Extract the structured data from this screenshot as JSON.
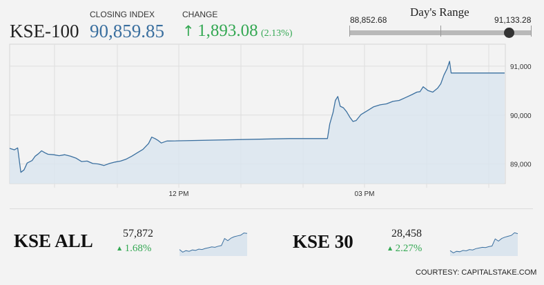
{
  "header": {
    "index_name": "KSE-100",
    "closing_label": "CLOSING INDEX",
    "closing_value": "90,859.85",
    "change_label": "CHANGE",
    "change_arrow": "↑",
    "change_value": "1,893.08",
    "change_pct": "(2.13%)",
    "range_title": "Day's Range",
    "range_low": "88,852.68",
    "range_high": "91,133.28"
  },
  "colors": {
    "line": "#3a6f9f",
    "area": "#dbe5ee",
    "positive": "#34a853",
    "marker": "#333333"
  },
  "chart_data": {
    "type": "area",
    "title": "",
    "xlabel": "",
    "ylabel": "",
    "ylim": [
      88600,
      91450
    ],
    "y_ticks": [
      89000,
      90000,
      91000
    ],
    "y_tick_labels": [
      "89,000",
      "90,000",
      "91,000"
    ],
    "x_tick_labels": [
      "12 PM",
      "03 PM"
    ],
    "grid": true,
    "series": [
      {
        "values": [
          [
            0,
            89320
          ],
          [
            6,
            89290
          ],
          [
            10,
            89330
          ],
          [
            14,
            88830
          ],
          [
            18,
            88880
          ],
          [
            22,
            89020
          ],
          [
            28,
            89070
          ],
          [
            32,
            89160
          ],
          [
            36,
            89210
          ],
          [
            40,
            89270
          ],
          [
            44,
            89230
          ],
          [
            48,
            89200
          ],
          [
            55,
            89190
          ],
          [
            62,
            89170
          ],
          [
            69,
            89190
          ],
          [
            76,
            89160
          ],
          [
            83,
            89120
          ],
          [
            90,
            89050
          ],
          [
            97,
            89060
          ],
          [
            104,
            89010
          ],
          [
            111,
            89000
          ],
          [
            118,
            88970
          ],
          [
            125,
            89010
          ],
          [
            132,
            89040
          ],
          [
            139,
            89060
          ],
          [
            146,
            89100
          ],
          [
            153,
            89160
          ],
          [
            160,
            89230
          ],
          [
            167,
            89300
          ],
          [
            174,
            89420
          ],
          [
            178,
            89550
          ],
          [
            182,
            89520
          ],
          [
            186,
            89480
          ],
          [
            190,
            89430
          ],
          [
            197,
            89470
          ],
          [
            200,
            89470
          ],
          [
            350,
            89520
          ],
          [
            398,
            89520
          ],
          [
            401,
            89820
          ],
          [
            405,
            90050
          ],
          [
            408,
            90300
          ],
          [
            411,
            90380
          ],
          [
            414,
            90180
          ],
          [
            418,
            90150
          ],
          [
            422,
            90070
          ],
          [
            426,
            89960
          ],
          [
            430,
            89870
          ],
          [
            434,
            89890
          ],
          [
            440,
            90010
          ],
          [
            448,
            90090
          ],
          [
            456,
            90170
          ],
          [
            464,
            90210
          ],
          [
            472,
            90230
          ],
          [
            480,
            90280
          ],
          [
            488,
            90300
          ],
          [
            496,
            90360
          ],
          [
            504,
            90420
          ],
          [
            510,
            90470
          ],
          [
            514,
            90480
          ],
          [
            518,
            90580
          ],
          [
            524,
            90500
          ],
          [
            530,
            90470
          ],
          [
            536,
            90550
          ],
          [
            540,
            90640
          ],
          [
            544,
            90820
          ],
          [
            548,
            90950
          ],
          [
            551,
            91100
          ],
          [
            553,
            90860
          ],
          [
            620,
            90860
          ]
        ]
      }
    ]
  },
  "mini": [
    {
      "name": "KSE ALL",
      "value": "57,872",
      "arrow": "▲",
      "pct": "1.68%",
      "values": [
        0.2,
        0.08,
        0.15,
        0.12,
        0.18,
        0.16,
        0.22,
        0.2,
        0.25,
        0.28,
        0.32,
        0.3,
        0.35,
        0.38,
        0.7,
        0.6,
        0.72,
        0.78,
        0.82,
        0.85,
        0.95,
        0.93
      ]
    },
    {
      "name": "KSE 30",
      "value": "28,458",
      "arrow": "▲",
      "pct": "2.27%",
      "values": [
        0.15,
        0.05,
        0.12,
        0.1,
        0.16,
        0.14,
        0.2,
        0.18,
        0.24,
        0.27,
        0.3,
        0.29,
        0.33,
        0.36,
        0.68,
        0.58,
        0.7,
        0.76,
        0.8,
        0.84,
        0.96,
        0.92
      ]
    }
  ],
  "footer": {
    "courtesy": "COURTESY: CAPITALSTAKE.COM"
  }
}
